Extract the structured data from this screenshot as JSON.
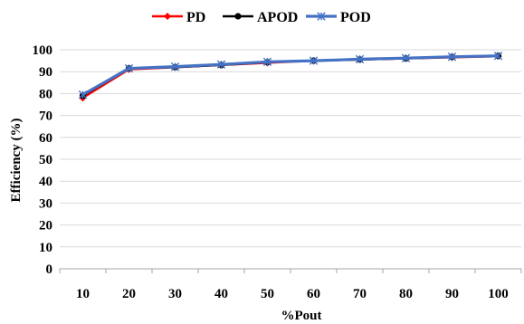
{
  "chart_data": {
    "type": "line",
    "xlabel": "%Pout",
    "ylabel": "Efficiency (%)",
    "ylim": [
      0,
      100
    ],
    "yticks": [
      0,
      10,
      20,
      30,
      40,
      50,
      60,
      70,
      80,
      90,
      100
    ],
    "grid": "horizontal",
    "legend_position": "top",
    "x": [
      10,
      20,
      30,
      40,
      50,
      60,
      70,
      80,
      90,
      100
    ],
    "series": [
      {
        "name": "PD",
        "color": "#ff0000",
        "marker": "diamond",
        "values": [
          78,
          91,
          92,
          93,
          94,
          95,
          95.5,
          96,
          96.5,
          97
        ]
      },
      {
        "name": "APOD",
        "color": "#000000",
        "marker": "circle",
        "values": [
          79,
          91.5,
          92,
          93,
          94.3,
          95,
          95.5,
          96,
          96.7,
          97.2
        ]
      },
      {
        "name": "POD",
        "color": "#4472c4",
        "marker": "star",
        "values": [
          79.5,
          91.5,
          92.3,
          93.3,
          94.5,
          95,
          95.7,
          96.2,
          96.8,
          97.2
        ]
      }
    ]
  }
}
